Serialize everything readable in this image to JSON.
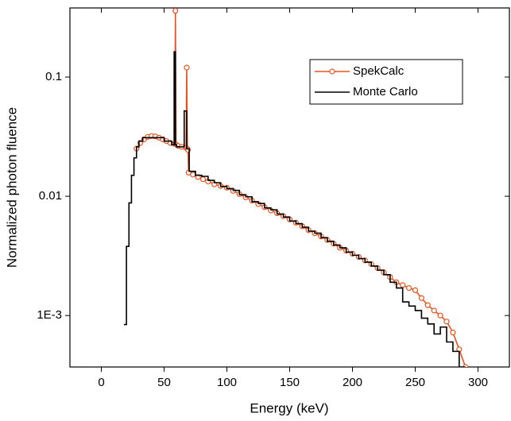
{
  "chart_data": {
    "type": "line",
    "x_label": "Energy (keV)",
    "y_label": "Normalized photon fluence",
    "xlim": [
      -25,
      325
    ],
    "xticks": [
      0,
      50,
      100,
      150,
      200,
      250,
      300
    ],
    "ylim": [
      0.00037,
      0.38
    ],
    "yticks": [
      {
        "value": 0.001,
        "label": "1E-3"
      },
      0.01,
      0.1
    ],
    "yscale": "log",
    "legend": "upper right",
    "series": [
      {
        "name": "SpekCalc",
        "color": "#e8541e",
        "marker": "circle",
        "drawstyle": "default",
        "x": [
          28,
          31,
          34,
          37,
          40,
          43,
          46,
          49,
          52,
          55,
          58.5,
          59,
          59.5,
          61,
          64,
          67.5,
          68,
          68.5,
          69,
          69.5,
          73,
          77,
          81,
          85,
          90,
          95,
          100,
          105,
          110,
          115,
          120,
          125,
          130,
          135,
          140,
          145,
          150,
          155,
          160,
          165,
          170,
          175,
          180,
          185,
          190,
          195,
          200,
          205,
          210,
          215,
          220,
          225,
          230,
          235,
          240,
          245,
          250,
          255,
          260,
          265,
          270,
          275,
          280,
          285,
          290
        ],
        "values": [
          0.0251,
          0.028,
          0.03,
          0.0315,
          0.032,
          0.0318,
          0.031,
          0.03,
          0.029,
          0.028,
          0.0275,
          0.36,
          0.0272,
          0.0265,
          0.026,
          0.0255,
          0.12,
          0.025,
          0.0245,
          0.0158,
          0.0152,
          0.0145,
          0.0139,
          0.0133,
          0.0126,
          0.0122,
          0.0118,
          0.0111,
          0.0104,
          0.0098,
          0.0092,
          0.0086,
          0.0081,
          0.0076,
          0.0072,
          0.0068,
          0.0064,
          0.006,
          0.0056,
          0.0052,
          0.0049,
          0.0046,
          0.0043,
          0.004,
          0.0037,
          0.0035,
          0.0033,
          0.0031,
          0.0029,
          0.0027,
          0.0025,
          0.0023,
          0.0021,
          0.0019,
          0.0018,
          0.0017,
          0.00163,
          0.0014,
          0.00122,
          0.0011,
          0.001,
          0.00089,
          0.00072,
          0.00052,
          0.00037
        ]
      },
      {
        "name": "Monte Carlo",
        "color": "#000000",
        "marker": "none",
        "drawstyle": "steps-post",
        "x": [
          18,
          20,
          22,
          24,
          26,
          28,
          30,
          33,
          40,
          50,
          56,
          58,
          59,
          60,
          62,
          66,
          68,
          70,
          75,
          80,
          85,
          90,
          95,
          100,
          105,
          110,
          115,
          120,
          125,
          130,
          135,
          140,
          145,
          150,
          155,
          160,
          165,
          170,
          175,
          180,
          185,
          190,
          195,
          200,
          205,
          210,
          215,
          220,
          225,
          230,
          235,
          240,
          245,
          250,
          255,
          260,
          265,
          270,
          275,
          280,
          285,
          290
        ],
        "values": [
          0.00084,
          0.0038,
          0.0088,
          0.015,
          0.021,
          0.026,
          0.029,
          0.031,
          0.031,
          0.029,
          0.027,
          0.163,
          0.027,
          0.026,
          0.026,
          0.052,
          0.025,
          0.0162,
          0.015,
          0.0147,
          0.0136,
          0.013,
          0.0121,
          0.0116,
          0.0112,
          0.0103,
          0.0099,
          0.009,
          0.0087,
          0.008,
          0.0077,
          0.0071,
          0.0067,
          0.0062,
          0.0059,
          0.0055,
          0.0051,
          0.0049,
          0.0045,
          0.0042,
          0.0039,
          0.0037,
          0.0034,
          0.0032,
          0.003,
          0.0028,
          0.0026,
          0.0024,
          0.0022,
          0.0019,
          0.0017,
          0.0013,
          0.0012,
          0.0011,
          0.00095,
          0.00085,
          0.0007,
          0.0008,
          0.0006,
          0.0005,
          0.00037,
          0.00037
        ]
      }
    ]
  }
}
